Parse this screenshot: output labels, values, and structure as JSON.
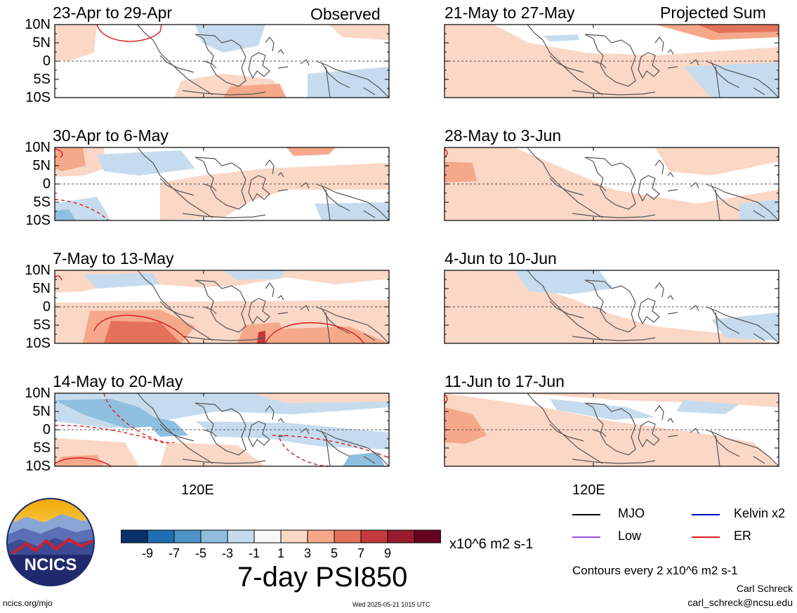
{
  "panels": [
    {
      "id": "p1",
      "title": "23-Apr to 29-Apr",
      "tag": "Observed"
    },
    {
      "id": "p2",
      "title": "30-Apr to 6-May",
      "tag": ""
    },
    {
      "id": "p3",
      "title": "7-May to 13-May",
      "tag": ""
    },
    {
      "id": "p4",
      "title": "14-May to 20-May",
      "tag": ""
    },
    {
      "id": "p5",
      "title": "21-May to 27-May",
      "tag": "Projected Sum"
    },
    {
      "id": "p6",
      "title": "28-May to 3-Jun",
      "tag": ""
    },
    {
      "id": "p7",
      "title": "4-Jun to 10-Jun",
      "tag": ""
    },
    {
      "id": "p8",
      "title": "11-Jun to 17-Jun",
      "tag": ""
    }
  ],
  "lat_labels": [
    "10N",
    "5N",
    "0",
    "5S",
    "10S"
  ],
  "x_label": "120E",
  "colorbar": {
    "colors": [
      "#08306b",
      "#1f6eb5",
      "#4e93c8",
      "#8fbfdf",
      "#c6dcee",
      "#f7f7f7",
      "#fbd7c6",
      "#f5a98a",
      "#e4725a",
      "#c43a3a",
      "#991b2e",
      "#67001f"
    ],
    "labels": [
      "-9",
      "-7",
      "-5",
      "-3",
      "-1",
      "1",
      "3",
      "5",
      "7",
      "9"
    ],
    "units": "x10^6 m2 s-1",
    "title": "7-day PSI850"
  },
  "legend": {
    "items": [
      {
        "label": "MJO",
        "color": "#000000"
      },
      {
        "label": "Kelvin x2",
        "color": "#0000cc"
      },
      {
        "label": "Low",
        "color": "#a04fd8"
      },
      {
        "label": "ER",
        "color": "#e0191b"
      }
    ],
    "contour_note": "Contours every 2 x10^6 m2 s-1",
    "author": "Carl Schreck",
    "email": "carl_schreck@ncsu.edu"
  },
  "logo": {
    "text": "NCICS"
  },
  "footer": {
    "url": "ncics.org/mjo",
    "timestamp": "Wed 2025-05-21 1015 UTC"
  },
  "chart_data": {
    "type": "heatmap",
    "variable": "7-day PSI850",
    "units": "x10^6 m2 s-1",
    "color_levels": [
      -9,
      -7,
      -5,
      -3,
      -1,
      1,
      3,
      5,
      7,
      9
    ],
    "lat_ticks": [
      "10N",
      "5N",
      "0",
      "5S",
      "10S"
    ],
    "lon_ticks": [
      "120E"
    ],
    "panels": [
      {
        "title": "23-Apr to 29-Apr",
        "group": "Observed"
      },
      {
        "title": "30-Apr to 6-May",
        "group": "Observed"
      },
      {
        "title": "7-May to 13-May",
        "group": "Observed"
      },
      {
        "title": "14-May to 20-May",
        "group": "Observed"
      },
      {
        "title": "21-May to 27-May",
        "group": "Projected Sum"
      },
      {
        "title": "28-May to 3-Jun",
        "group": "Projected Sum"
      },
      {
        "title": "4-Jun to 10-Jun",
        "group": "Projected Sum"
      },
      {
        "title": "11-Jun to 17-Jun",
        "group": "Projected Sum"
      }
    ],
    "legend": [
      "MJO",
      "Kelvin x2",
      "Low",
      "ER"
    ]
  }
}
